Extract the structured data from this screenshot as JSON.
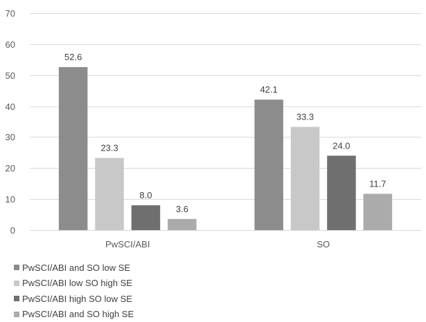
{
  "chart_data": {
    "type": "bar",
    "categories": [
      "PwSCI/ABI",
      "SO"
    ],
    "series": [
      {
        "name": "PwSCI/ABI and SO low SE",
        "values": [
          52.6,
          42.1
        ],
        "color": "#8c8c8c"
      },
      {
        "name": "PwSCI/ABI low SO high SE",
        "values": [
          23.3,
          33.3
        ],
        "color": "#c8c8c8"
      },
      {
        "name": "PwSCI/ABI high SO low SE",
        "values": [
          8.0,
          24.0
        ],
        "color": "#6f6f6f"
      },
      {
        "name": "PwSCI/ABI and SO high SE",
        "values": [
          3.6,
          11.7
        ],
        "color": "#ababab"
      }
    ],
    "ylim": [
      0,
      70
    ],
    "yticks": [
      0,
      10,
      20,
      30,
      40,
      50,
      60,
      70
    ],
    "grid": true,
    "gridColor": "#d9d9d9",
    "legend_position": "bottom-left",
    "data_labels_decimals": 1,
    "title": "",
    "xlabel": "",
    "ylabel": ""
  }
}
